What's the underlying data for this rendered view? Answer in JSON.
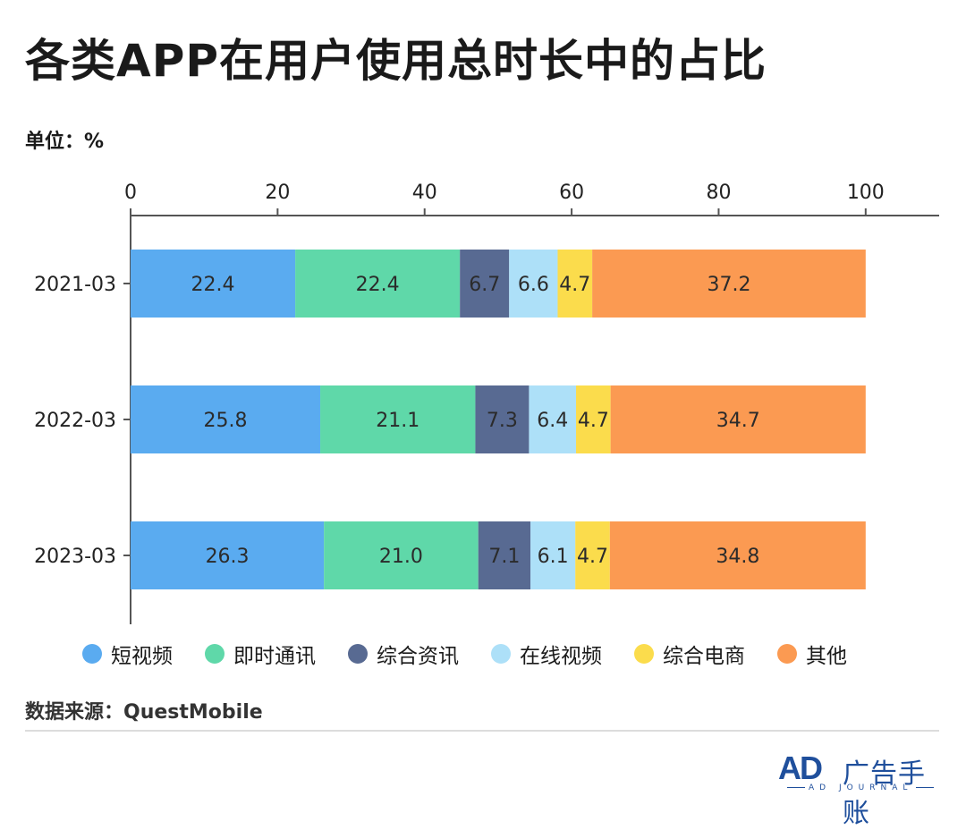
{
  "chart_data": {
    "type": "bar",
    "orientation": "horizontal",
    "stacked": true,
    "title": "各类APP在用户使用总时长中的占比",
    "unit_label": "单位：%",
    "categories": [
      "2021-03",
      "2022-03",
      "2023-03"
    ],
    "series": [
      {
        "name": "短视频",
        "color": "#5aabf0",
        "values": [
          22.4,
          25.8,
          26.3
        ],
        "labels": [
          "22.4",
          "25.8",
          "26.3"
        ]
      },
      {
        "name": "即时通讯",
        "color": "#5fd8a9",
        "values": [
          22.4,
          21.1,
          21.0
        ],
        "labels": [
          "22.4",
          "21.1",
          "21.0"
        ]
      },
      {
        "name": "综合资讯",
        "color": "#586a92",
        "values": [
          6.7,
          7.3,
          7.1
        ],
        "labels": [
          "6.7",
          "7.3",
          "7.1"
        ]
      },
      {
        "name": "在线视频",
        "color": "#ade0f8",
        "values": [
          6.6,
          6.4,
          6.1
        ],
        "labels": [
          "6.6",
          "6.4",
          "6.1"
        ]
      },
      {
        "name": "综合电商",
        "color": "#fbdc4c",
        "values": [
          4.7,
          4.7,
          4.7
        ],
        "labels": [
          "4.7",
          "4.7",
          "4.7"
        ]
      },
      {
        "name": "其他",
        "color": "#fb9a52",
        "values": [
          37.2,
          34.7,
          34.8
        ],
        "labels": [
          "37.2",
          "34.7",
          "34.8"
        ]
      }
    ],
    "xlim": [
      0,
      110
    ],
    "xticks": [
      0,
      20,
      40,
      60,
      80,
      100
    ],
    "xtick_labels": [
      "0",
      "20",
      "40",
      "60",
      "80",
      "100"
    ],
    "axis_position": "top",
    "grid": false,
    "legend_position": "bottom"
  },
  "source": "数据来源：QuestMobile",
  "logo": {
    "mark": "AD",
    "name": "广告手账",
    "sub": "AD JOURNAL"
  }
}
